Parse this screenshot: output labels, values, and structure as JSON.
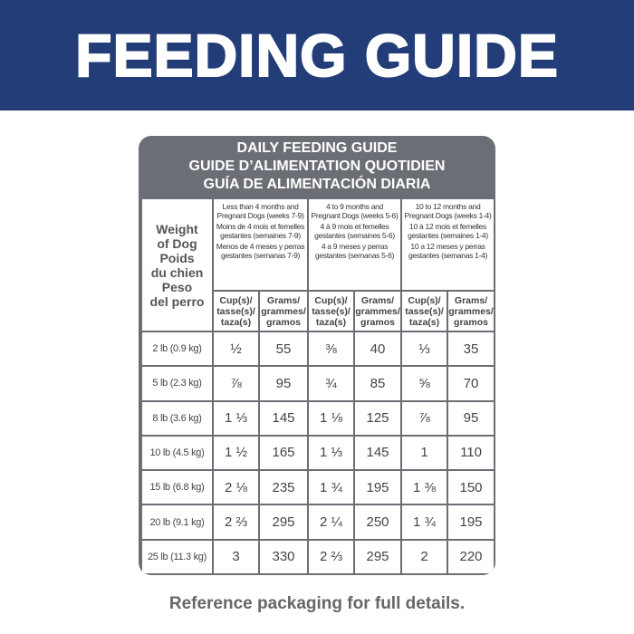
{
  "header": {
    "title": "FEEDING GUIDE"
  },
  "card": {
    "titles": [
      "DAILY FEEDING GUIDE",
      "GUIDE D’ALIMENTATION QUOTIDIEN",
      "GUÍA DE ALIMENTACIÓN DIARIA"
    ]
  },
  "table": {
    "weight_header": [
      "Weight",
      "of Dog",
      "Poids",
      "du chien",
      "Peso",
      "del perro"
    ],
    "groups": [
      {
        "lines": [
          "Less than 4 months and Pregnant Dogs (weeks 7-9)",
          "Moins de 4 mois et femelles gestantes (semaines 7-9)",
          "Menos de 4 meses y perras gestantes (semanas 7-9)"
        ]
      },
      {
        "lines": [
          "4 to 9 months and Pregnant Dogs (weeks 5-6)",
          "4 à 9 mois et femelles gestantes (semaines 5-6)",
          "4 a 9 meses y perras gestantes (semanas 5-6)"
        ]
      },
      {
        "lines": [
          "10 to 12 months and Pregnant Dogs (weeks 1-4)",
          "10 à 12 mois et femelles gestantes (semaines 1-4)",
          "10 a 12 meses y perras gestantes (semanas 1-4)"
        ]
      }
    ],
    "subheaders": [
      "Cup(s)/\ntasse(s)/\ntaza(s)",
      "Grams/\ngrammes/\ngramos"
    ],
    "rows": [
      {
        "weight": "2 lb (0.9 kg)",
        "cells": [
          "½",
          55,
          "⅜",
          40,
          "⅓",
          35
        ]
      },
      {
        "weight": "5 lb (2.3 kg)",
        "cells": [
          "⅞",
          95,
          "¾",
          85,
          "⅝",
          70
        ]
      },
      {
        "weight": "8 lb (3.6 kg)",
        "cells": [
          "1 ⅓",
          145,
          "1 ⅛",
          125,
          "⅞",
          95
        ]
      },
      {
        "weight": "10 lb (4.5 kg)",
        "cells": [
          "1 ½",
          165,
          "1 ⅓",
          145,
          "1",
          110
        ]
      },
      {
        "weight": "15 lb (6.8 kg)",
        "cells": [
          "2 ⅛",
          235,
          "1 ¾",
          195,
          "1 ⅜",
          150
        ]
      },
      {
        "weight": "20 lb (9.1 kg)",
        "cells": [
          "2 ⅔",
          295,
          "2 ¼",
          250,
          "1 ¾",
          195
        ]
      },
      {
        "weight": "25 lb (11.3 kg)",
        "cells": [
          "3",
          330,
          "2 ⅔",
          295,
          "2",
          220
        ]
      }
    ]
  },
  "footer": {
    "text": "Reference packaging for full details."
  }
}
